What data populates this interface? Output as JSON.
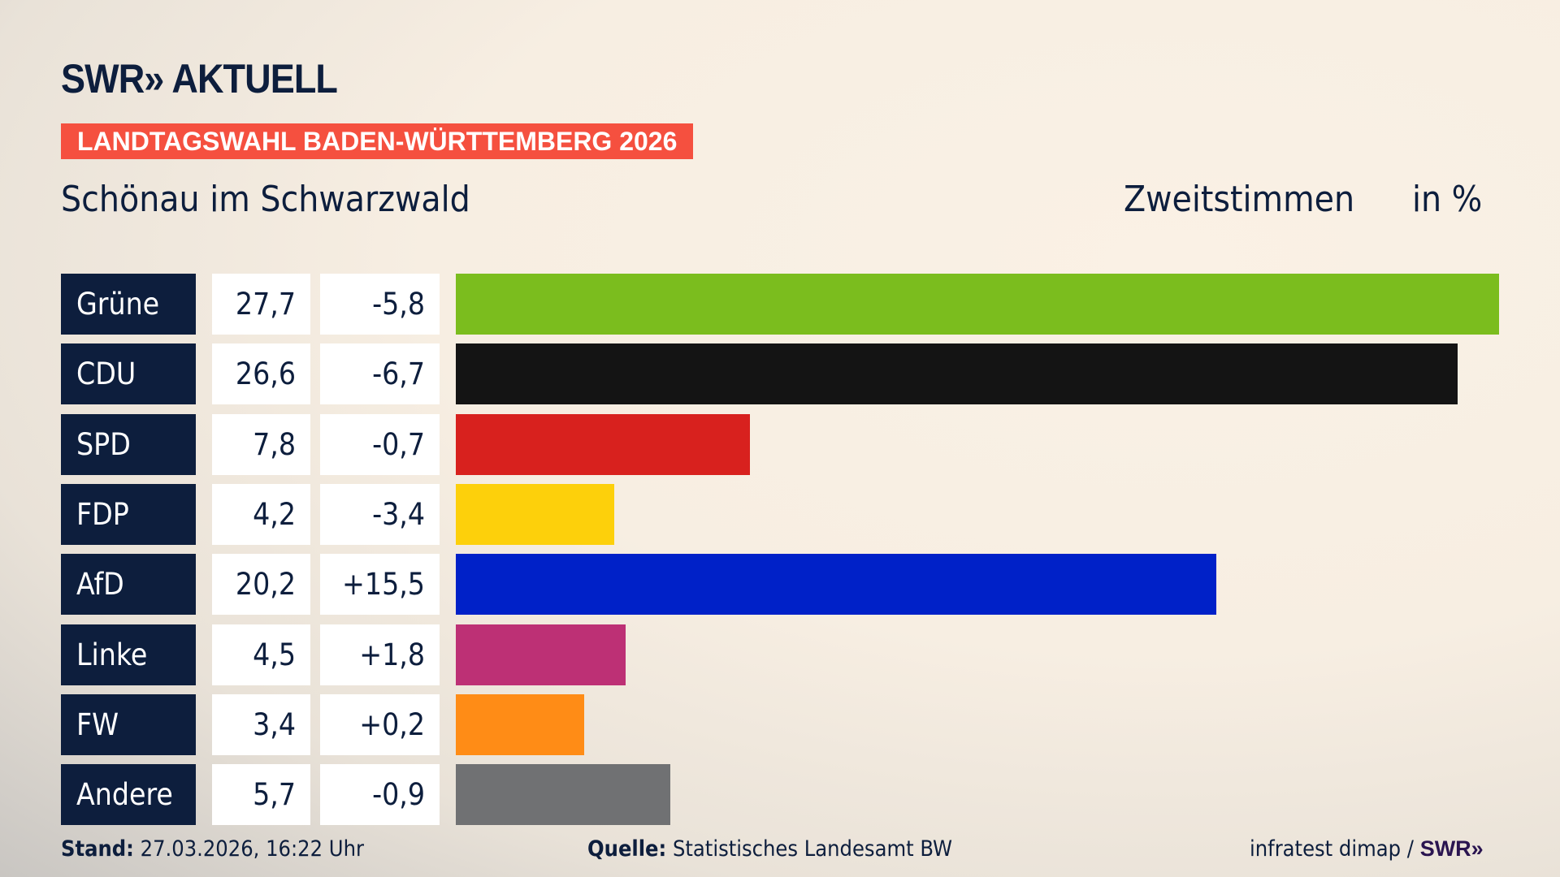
{
  "logo": "SWR» AKTUELL",
  "banner": "LANDTAGSWAHL BADEN-WÜRTTEMBERG 2026",
  "region": "Schönau im Schwarzwald",
  "measure": "Zweitstimmen",
  "unit": "in %",
  "chart_data": {
    "type": "bar",
    "orientation": "horizontal",
    "categories": [
      "Grüne",
      "CDU",
      "SPD",
      "FDP",
      "AfD",
      "Linke",
      "FW",
      "Andere"
    ],
    "values": [
      27.7,
      26.6,
      7.8,
      4.2,
      20.2,
      4.5,
      3.4,
      5.7
    ],
    "value_labels": [
      "27,7",
      "26,6",
      "7,8",
      "4,2",
      "20,2",
      "4,5",
      "3,4",
      "5,7"
    ],
    "changes": [
      -5.8,
      -6.7,
      -0.7,
      -3.4,
      15.5,
      1.8,
      0.2,
      -0.9
    ],
    "change_labels": [
      "-5,8",
      "-6,7",
      "-0,7",
      "-3,4",
      "+15,5",
      "+1,8",
      "+0,2",
      "-0,9"
    ],
    "colors": [
      "#7bbd1e",
      "#141414",
      "#d8211e",
      "#fdd00b",
      "#0021c8",
      "#bd3075",
      "#ff8c16",
      "#707173"
    ],
    "grid": false
  },
  "footer": {
    "stand_label": "Stand:",
    "stand_value": "27.03.2026, 16:22 Uhr",
    "source_label": "Quelle:",
    "source_value": "Statistisches Landesamt BW",
    "credit": "infratest dimap /",
    "credit_logo": "SWR»"
  }
}
